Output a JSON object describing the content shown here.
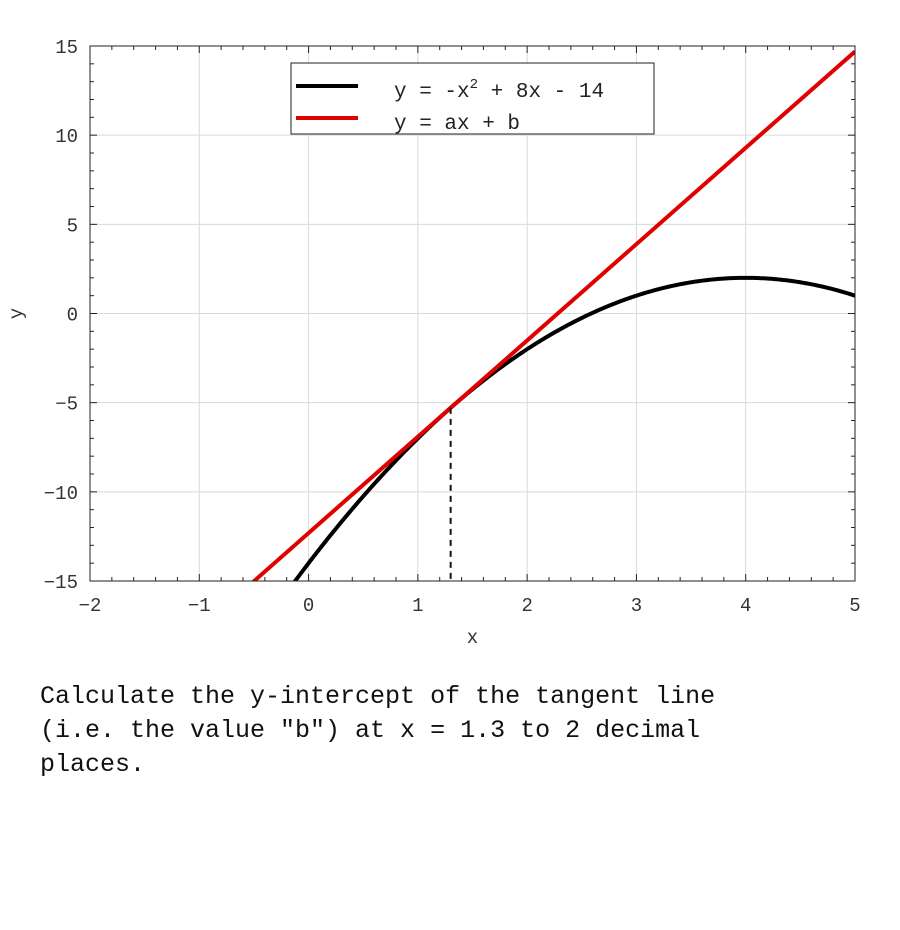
{
  "chart_data": {
    "type": "line",
    "xlabel": "x",
    "ylabel": "y",
    "xlim": [
      -2,
      5
    ],
    "ylim": [
      -15,
      15
    ],
    "xticks": [
      -2,
      -1,
      0,
      1,
      2,
      3,
      4,
      5
    ],
    "xtick_labels": [
      "−2",
      "−1",
      "0",
      "1",
      "2",
      "3",
      "4",
      "5"
    ],
    "yticks": [
      -15,
      -10,
      -5,
      0,
      5,
      10,
      15
    ],
    "ytick_labels": [
      "−15",
      "−10",
      "−5",
      "0",
      "5",
      "10",
      "15"
    ],
    "grid": true,
    "legend_position": "top-center",
    "series": [
      {
        "name": "y = -x2 + 8x - 14",
        "legend_base": "y = -x",
        "legend_sup": "2",
        "legend_rest": " + 8x - 14",
        "color": "#000000",
        "kind": "quadratic",
        "coefficients": [
          -1,
          8,
          -14
        ]
      },
      {
        "name": "y = ax + b",
        "legend_base": "y = ax + b",
        "color": "#e00000",
        "kind": "linear",
        "slope": 5.4,
        "intercept": -12.31
      }
    ],
    "annotation": {
      "x": 1.3,
      "style": "dashed"
    }
  },
  "question": "Calculate the y-intercept of the tangent line\n(i.e. the value \"b\") at x = 1.3 to 2 decimal\nplaces."
}
